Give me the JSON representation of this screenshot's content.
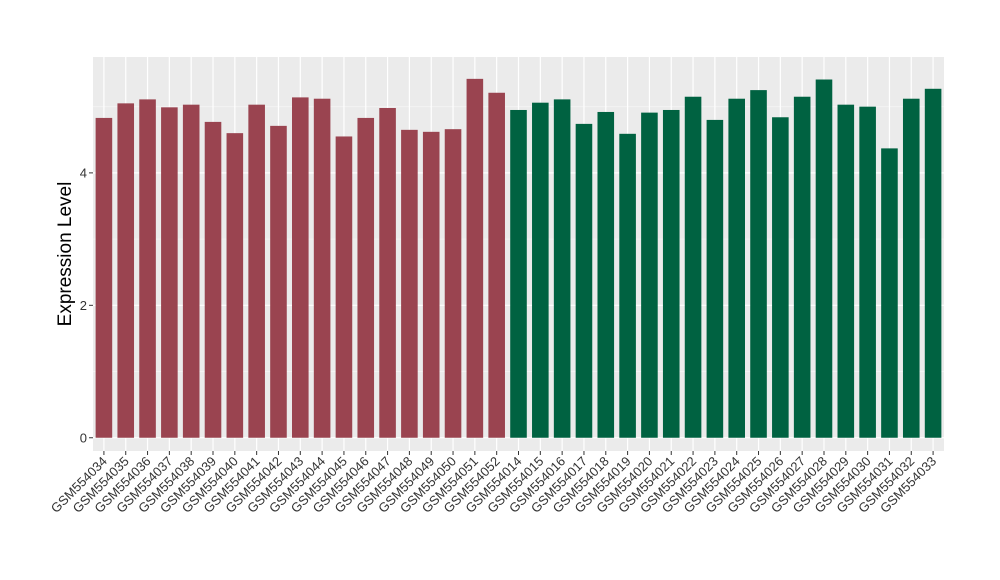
{
  "chart_data": {
    "type": "bar",
    "title": "",
    "xlabel": "",
    "ylabel": "Expression Level",
    "ylim": [
      -0.2,
      5.75
    ],
    "y_ticks": [
      0,
      2,
      4
    ],
    "y_tick_labels": [
      "0",
      "2",
      "4"
    ],
    "grid": true,
    "legend": "none",
    "categories": [
      "GSM554034",
      "GSM554035",
      "GSM554036",
      "GSM554037",
      "GSM554038",
      "GSM554039",
      "GSM554040",
      "GSM554041",
      "GSM554042",
      "GSM554043",
      "GSM554044",
      "GSM554045",
      "GSM554046",
      "GSM554047",
      "GSM554048",
      "GSM554049",
      "GSM554050",
      "GSM554051",
      "GSM554052",
      "GSM554014",
      "GSM554015",
      "GSM554016",
      "GSM554017",
      "GSM554018",
      "GSM554019",
      "GSM554020",
      "GSM554021",
      "GSM554022",
      "GSM554023",
      "GSM554024",
      "GSM554025",
      "GSM554026",
      "GSM554027",
      "GSM554028",
      "GSM554029",
      "GSM554030",
      "GSM554031",
      "GSM554032",
      "GSM554033"
    ],
    "values": [
      4.83,
      5.05,
      5.11,
      4.99,
      5.03,
      4.77,
      4.6,
      5.03,
      4.71,
      5.14,
      5.12,
      4.55,
      4.83,
      4.98,
      4.65,
      4.62,
      4.66,
      5.42,
      5.21,
      4.95,
      5.06,
      5.11,
      4.74,
      4.92,
      4.59,
      4.91,
      4.95,
      5.15,
      4.8,
      5.12,
      5.25,
      4.84,
      5.15,
      5.41,
      5.03,
      5.0,
      4.37,
      5.12,
      5.27
    ],
    "groups": [
      {
        "count": 19,
        "color": "#9a4450"
      },
      {
        "count": 20,
        "color": "#006241"
      }
    ]
  },
  "colors": {
    "panel_bg": "#ebebeb",
    "grid_major": "#ffffff",
    "grid_minor": "#f5f5f5"
  }
}
